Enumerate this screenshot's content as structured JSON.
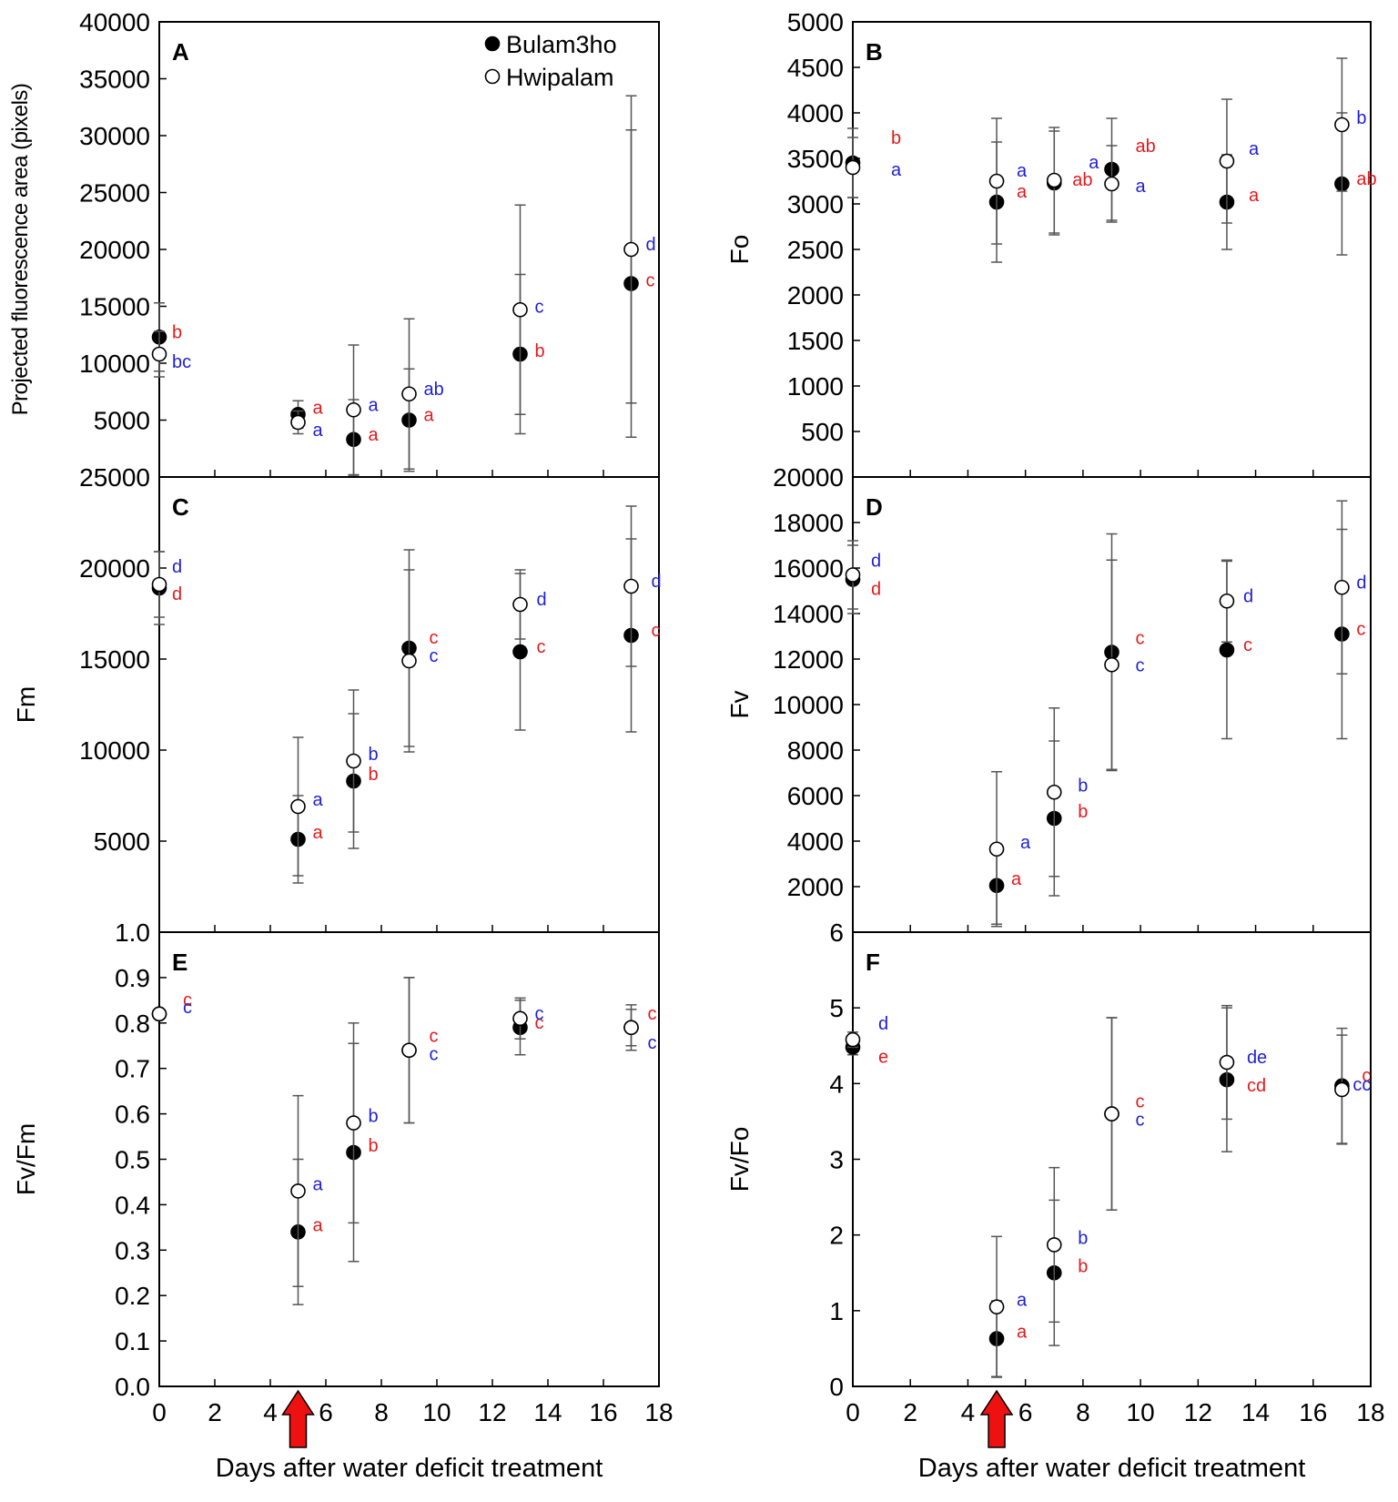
{
  "x_axis_title": "Days after water deficit treatment",
  "x_ticks": [
    "0",
    "2",
    "4",
    "6",
    "8",
    "10",
    "12",
    "14",
    "16",
    "18"
  ],
  "legend": {
    "filled": "Bulam3ho",
    "open": "Hwipalam"
  },
  "colors": {
    "bulam": "#e31a1c",
    "hwipalam": "#1f1fd6",
    "arrow": "#ee1111",
    "err": "#555555"
  },
  "chart_data": [
    {
      "id": "A",
      "type": "scatter",
      "ylabel": "Projected fluorescence area (pixels)",
      "xlim": [
        0,
        18
      ],
      "ylim": [
        0,
        40000
      ],
      "yticks": [
        "",
        "5000",
        "10000",
        "15000",
        "20000",
        "25000",
        "30000",
        "35000",
        "40000"
      ],
      "x": [
        0,
        5,
        7,
        9,
        13,
        17
      ],
      "series": [
        {
          "name": "Bulam3ho",
          "marker": "filled",
          "values": [
            12300,
            5500,
            3300,
            5000,
            10800,
            17000
          ],
          "err": [
            3000,
            1200,
            3500,
            4500,
            7000,
            13500
          ],
          "letters": [
            "b",
            "a",
            "a",
            "a",
            "b",
            "c"
          ]
        },
        {
          "name": "Hwipalam",
          "marker": "open",
          "values": [
            10800,
            4800,
            5900,
            7300,
            14700,
            20000
          ],
          "err": [
            2000,
            1000,
            5700,
            6600,
            9200,
            13500
          ],
          "letters": [
            "bc",
            "a",
            "a",
            "ab",
            "c",
            "d"
          ]
        }
      ]
    },
    {
      "id": "B",
      "type": "scatter",
      "ylabel": "Fo",
      "xlim": [
        0,
        18
      ],
      "ylim": [
        0,
        5000
      ],
      "yticks": [
        "",
        "500",
        "1000",
        "1500",
        "2000",
        "2500",
        "3000",
        "3500",
        "4000",
        "4500",
        "5000"
      ],
      "x": [
        0,
        5,
        7,
        9,
        13,
        17
      ],
      "series": [
        {
          "name": "Bulam3ho",
          "marker": "filled",
          "values": [
            3450,
            3020,
            3230,
            3380,
            3020,
            3220
          ],
          "err": [
            380,
            660,
            570,
            560,
            520,
            780
          ],
          "letters": [
            "b",
            "a",
            "ab",
            "ab",
            "a",
            "ab"
          ]
        },
        {
          "name": "Hwipalam",
          "marker": "open",
          "values": [
            3400,
            3250,
            3260,
            3220,
            3470,
            3870
          ],
          "err": [
            330,
            690,
            580,
            420,
            680,
            730
          ],
          "letters": [
            "a",
            "a",
            "a",
            "a",
            "a",
            "b"
          ]
        }
      ]
    },
    {
      "id": "C",
      "type": "scatter",
      "ylabel": "Fm",
      "xlim": [
        0,
        18
      ],
      "ylim": [
        0,
        25000
      ],
      "yticks": [
        "",
        "5000",
        "10000",
        "15000",
        "20000",
        "25000"
      ],
      "x": [
        0,
        5,
        7,
        9,
        13,
        17
      ],
      "series": [
        {
          "name": "Bulam3ho",
          "marker": "filled",
          "values": [
            18900,
            5100,
            8300,
            15600,
            15400,
            16300
          ],
          "err": [
            2000,
            2400,
            3700,
            5400,
            4300,
            5300
          ],
          "letters": [
            "d",
            "a",
            "b",
            "c",
            "c",
            "c"
          ]
        },
        {
          "name": "Hwipalam",
          "marker": "open",
          "values": [
            19100,
            6900,
            9400,
            14900,
            18000,
            19000
          ],
          "err": [
            1800,
            3800,
            3900,
            5000,
            1900,
            4400
          ],
          "letters": [
            "d",
            "a",
            "b",
            "c",
            "d",
            "d"
          ]
        }
      ]
    },
    {
      "id": "D",
      "type": "scatter",
      "ylabel": "Fv",
      "xlim": [
        0,
        18
      ],
      "ylim": [
        0,
        20000
      ],
      "yticks": [
        "",
        "2000",
        "4000",
        "6000",
        "8000",
        "10000",
        "12000",
        "14000",
        "16000",
        "18000",
        "20000"
      ],
      "x": [
        0,
        5,
        7,
        9,
        13,
        17
      ],
      "series": [
        {
          "name": "Bulam3ho",
          "marker": "filled",
          "values": [
            15500,
            2050,
            5000,
            12300,
            12400,
            13100
          ],
          "err": [
            1500,
            1700,
            3400,
            5200,
            3900,
            4600
          ],
          "letters": [
            "d",
            "a",
            "b",
            "c",
            "c",
            "c"
          ]
        },
        {
          "name": "Hwipalam",
          "marker": "open",
          "values": [
            15700,
            3650,
            6150,
            11750,
            14550,
            15150
          ],
          "err": [
            1500,
            3400,
            3700,
            4600,
            1800,
            3800
          ],
          "letters": [
            "d",
            "a",
            "b",
            "c",
            "d",
            "d"
          ]
        }
      ]
    },
    {
      "id": "E",
      "type": "scatter",
      "ylabel": "Fv/Fm",
      "xlim": [
        0,
        18
      ],
      "ylim": [
        0,
        1.0
      ],
      "yticks": [
        "0.0",
        "0.1",
        "0.2",
        "0.3",
        "0.4",
        "0.5",
        "0.6",
        "0.7",
        "0.8",
        "0.9",
        "1.0"
      ],
      "x": [
        0,
        5,
        7,
        9,
        13,
        17
      ],
      "series": [
        {
          "name": "Bulam3ho",
          "marker": "filled",
          "values": [
            0.82,
            0.34,
            0.515,
            0.74,
            0.79,
            0.79
          ],
          "err": [
            0.01,
            0.16,
            0.24,
            0.16,
            0.06,
            0.05
          ],
          "letters": [
            "c",
            "a",
            "b",
            "c",
            "c",
            "c"
          ]
        },
        {
          "name": "Hwipalam",
          "marker": "open",
          "values": [
            0.82,
            0.43,
            0.58,
            0.74,
            0.81,
            0.79
          ],
          "err": [
            0.01,
            0.21,
            0.22,
            0.16,
            0.045,
            0.04
          ],
          "letters": [
            "c",
            "a",
            "b",
            "c",
            "c",
            "c"
          ]
        }
      ]
    },
    {
      "id": "F",
      "type": "scatter",
      "ylabel": "Fv/Fo",
      "xlim": [
        0,
        18
      ],
      "ylim": [
        0,
        6
      ],
      "yticks": [
        "0",
        "1",
        "2",
        "3",
        "4",
        "5",
        "6"
      ],
      "x": [
        0,
        5,
        7,
        9,
        13,
        17
      ],
      "series": [
        {
          "name": "Bulam3ho",
          "marker": "filled",
          "values": [
            4.48,
            0.63,
            1.5,
            3.6,
            4.05,
            3.97
          ],
          "err": [
            0.1,
            0.5,
            0.96,
            1.27,
            0.95,
            0.76
          ],
          "letters": [
            "e",
            "a",
            "b",
            "c",
            "cd",
            "c"
          ]
        },
        {
          "name": "Hwipalam",
          "marker": "open",
          "values": [
            4.58,
            1.05,
            1.87,
            3.6,
            4.28,
            3.92
          ],
          "err": [
            0.1,
            0.93,
            1.02,
            1.27,
            0.75,
            0.72
          ],
          "letters": [
            "d",
            "a",
            "b",
            "c",
            "de",
            "cc"
          ]
        }
      ]
    }
  ]
}
